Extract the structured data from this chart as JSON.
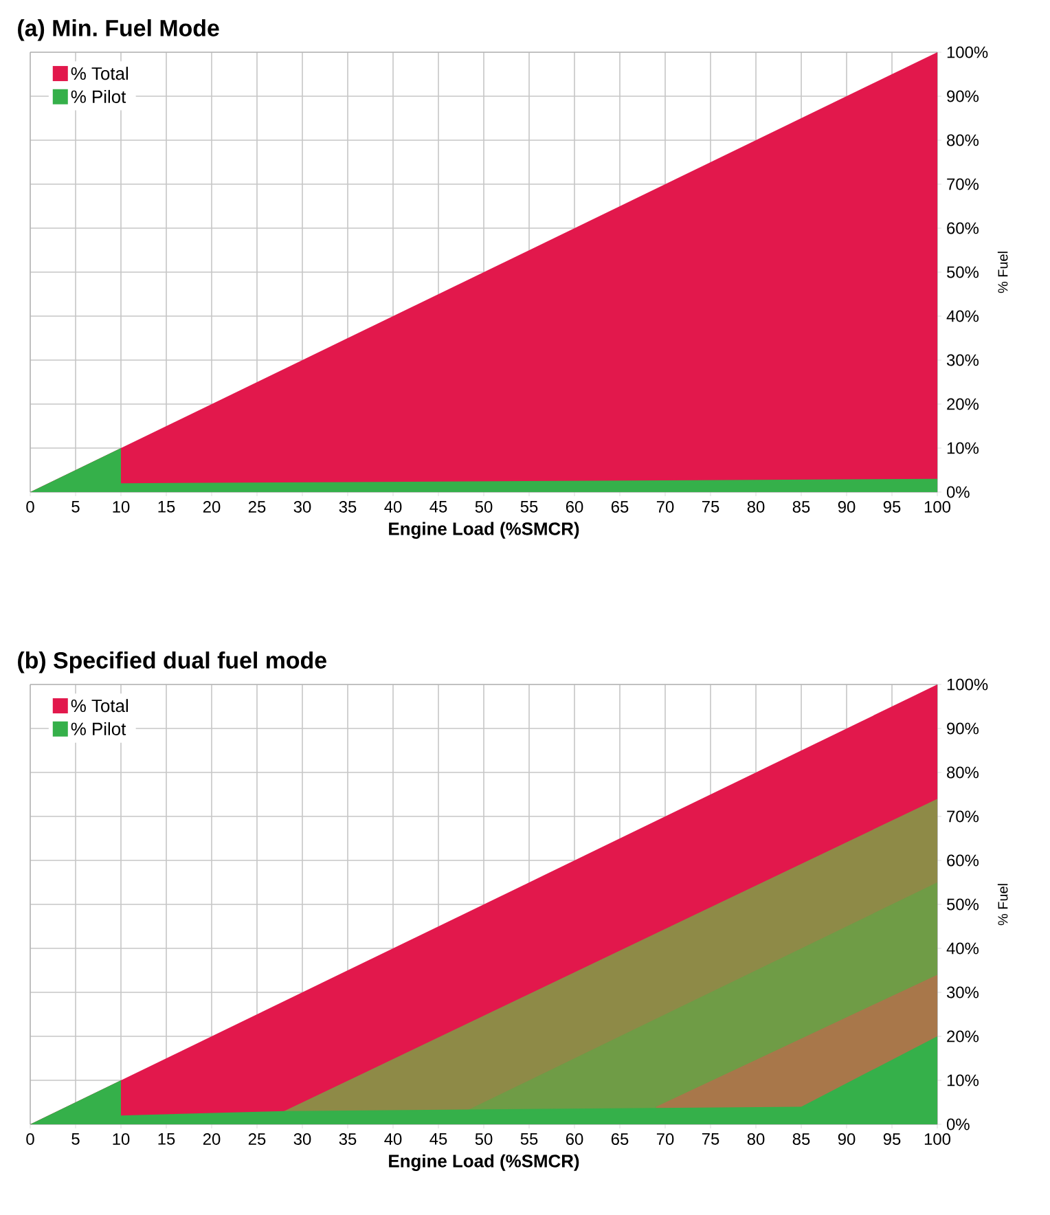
{
  "chart_data": [
    {
      "type": "area",
      "title": "(a) Min. Fuel Mode",
      "xlabel": "Engine Load (%SMCR)",
      "ylabel": "% Fuel",
      "series": [
        {
          "name": "% Total",
          "color": "#e2184c",
          "x": [
            0,
            100
          ],
          "values": [
            0,
            100
          ]
        },
        {
          "name": "% Pilot",
          "color": "#35b04a",
          "x": [
            0,
            10,
            10,
            100
          ],
          "values": [
            0,
            10,
            2,
            3
          ]
        }
      ],
      "xlim": [
        0,
        100
      ],
      "ylim": [
        0,
        100
      ],
      "xticks": [
        0,
        5,
        10,
        15,
        20,
        25,
        30,
        35,
        40,
        45,
        50,
        55,
        60,
        65,
        70,
        75,
        80,
        85,
        90,
        95,
        100
      ],
      "yticks": [
        {
          "value": 0,
          "label": "0%"
        },
        {
          "value": 10,
          "label": "10%"
        },
        {
          "value": 20,
          "label": "20%"
        },
        {
          "value": 30,
          "label": "30%"
        },
        {
          "value": 40,
          "label": "40%"
        },
        {
          "value": 50,
          "label": "50%"
        },
        {
          "value": 60,
          "label": "60%"
        },
        {
          "value": 70,
          "label": "70%"
        },
        {
          "value": 80,
          "label": "80%"
        },
        {
          "value": 90,
          "label": "90%"
        },
        {
          "value": 100,
          "label": "100%"
        }
      ],
      "grid": true,
      "legend": "top left"
    },
    {
      "type": "area",
      "title": "(b) Specified dual fuel mode",
      "xlabel": "Engine Load (%SMCR)",
      "ylabel": "% Fuel",
      "series": [
        {
          "name": "% Total",
          "color": "#e2184c",
          "x": [
            0,
            100
          ],
          "values": [
            0,
            100
          ]
        },
        {
          "color": "#8e8a47",
          "x": [
            28,
            100
          ],
          "values": [
            3,
            74
          ]
        },
        {
          "color": "#6f9c46",
          "x": [
            48,
            100
          ],
          "values": [
            3,
            55
          ]
        },
        {
          "color": "#a8774a",
          "x": [
            69,
            100
          ],
          "values": [
            4,
            34
          ]
        },
        {
          "name": "% Pilot",
          "color": "#35b04a",
          "x": [
            0,
            10,
            10,
            28,
            85,
            100
          ],
          "values": [
            0,
            10,
            2,
            3,
            4,
            20
          ]
        }
      ],
      "xlim": [
        0,
        100
      ],
      "ylim": [
        0,
        100
      ],
      "xticks": [
        0,
        5,
        10,
        15,
        20,
        25,
        30,
        35,
        40,
        45,
        50,
        55,
        60,
        65,
        70,
        75,
        80,
        85,
        90,
        95,
        100
      ],
      "yticks": [
        {
          "value": 0,
          "label": "0%"
        },
        {
          "value": 10,
          "label": "10%"
        },
        {
          "value": 20,
          "label": "20%"
        },
        {
          "value": 30,
          "label": "30%"
        },
        {
          "value": 40,
          "label": "40%"
        },
        {
          "value": 50,
          "label": "50%"
        },
        {
          "value": 60,
          "label": "60%"
        },
        {
          "value": 70,
          "label": "70%"
        },
        {
          "value": 80,
          "label": "80%"
        },
        {
          "value": 90,
          "label": "90%"
        },
        {
          "value": 100,
          "label": "100%"
        }
      ],
      "grid": true,
      "legend": "top left"
    }
  ]
}
